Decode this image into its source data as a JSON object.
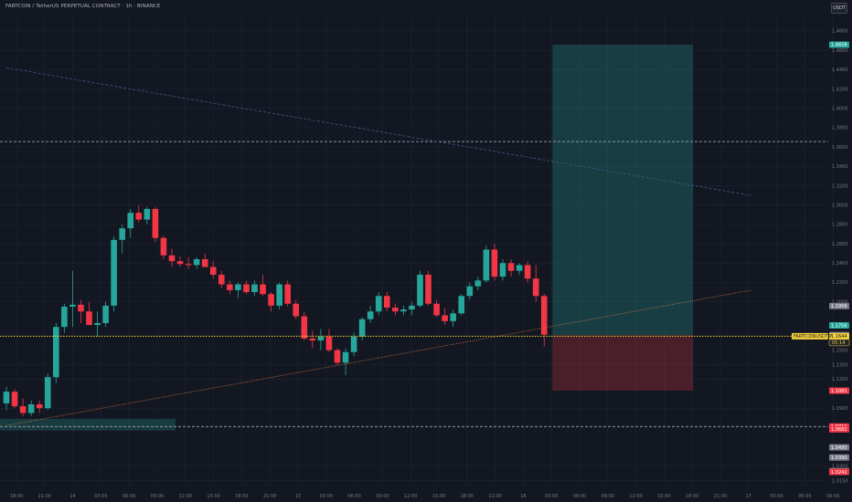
{
  "header": {
    "title": "FARTCOIN / TetherUS PERPETUAL CONTRACT · 1h · BINANCE"
  },
  "currency_button": {
    "label": "USDT"
  },
  "colors": {
    "background": "#131722",
    "up": "#26a69a",
    "down": "#f23645",
    "grid": "#1f2330",
    "profit_zone": "#26a69a",
    "loss_zone": "#f23645",
    "current_price_line": "#f5d33b"
  },
  "chart_data": {
    "type": "candlestick",
    "symbol_label": "FARTCOINUSDT.P",
    "interval": "1h",
    "y_ticks": [
      "1.4800",
      "1.4600",
      "1.4400",
      "1.4200",
      "1.4000",
      "1.3800",
      "1.3600",
      "1.3400",
      "1.3200",
      "1.3000",
      "1.2800",
      "1.2600",
      "1.2400",
      "1.2200",
      "1.2000",
      "1.1500",
      "1.1350",
      "1.1200",
      "1.0900",
      "1.0700",
      "1.0300",
      "1.0150"
    ],
    "y_tick_values": [
      1.48,
      1.46,
      1.44,
      1.42,
      1.4,
      1.38,
      1.36,
      1.34,
      1.32,
      1.3,
      1.28,
      1.26,
      1.24,
      1.22,
      1.2,
      1.15,
      1.135,
      1.12,
      1.09,
      1.07,
      1.03,
      1.015
    ],
    "x_ticks": [
      "18:00",
      "21:00",
      "14",
      "03:00",
      "06:00",
      "09:00",
      "12:00",
      "15:00",
      "18:00",
      "21:00",
      "15",
      "03:00",
      "06:00",
      "09:00",
      "12:00",
      "15:00",
      "18:00",
      "21:00",
      "16",
      "03:00",
      "06:00",
      "09:00",
      "12:00",
      "15:00",
      "18:00",
      "21:00",
      "17",
      "03:00",
      "06:00",
      "09:00"
    ],
    "ylim": [
      1.01,
      1.495
    ],
    "candles": [
      {
        "o": 1.095,
        "h": 1.112,
        "l": 1.088,
        "c": 1.107
      },
      {
        "o": 1.107,
        "h": 1.11,
        "l": 1.09,
        "c": 1.092
      },
      {
        "o": 1.092,
        "h": 1.1,
        "l": 1.082,
        "c": 1.085
      },
      {
        "o": 1.085,
        "h": 1.098,
        "l": 1.082,
        "c": 1.094
      },
      {
        "o": 1.094,
        "h": 1.098,
        "l": 1.085,
        "c": 1.09
      },
      {
        "o": 1.09,
        "h": 1.126,
        "l": 1.088,
        "c": 1.122
      },
      {
        "o": 1.122,
        "h": 1.178,
        "l": 1.116,
        "c": 1.174
      },
      {
        "o": 1.174,
        "h": 1.198,
        "l": 1.168,
        "c": 1.195
      },
      {
        "o": 1.195,
        "h": 1.232,
        "l": 1.174,
        "c": 1.197
      },
      {
        "o": 1.197,
        "h": 1.202,
        "l": 1.178,
        "c": 1.19
      },
      {
        "o": 1.19,
        "h": 1.2,
        "l": 1.176,
        "c": 1.176
      },
      {
        "o": 1.176,
        "h": 1.19,
        "l": 1.164,
        "c": 1.178
      },
      {
        "o": 1.178,
        "h": 1.2,
        "l": 1.174,
        "c": 1.196
      },
      {
        "o": 1.196,
        "h": 1.268,
        "l": 1.19,
        "c": 1.264
      },
      {
        "o": 1.264,
        "h": 1.28,
        "l": 1.25,
        "c": 1.276
      },
      {
        "o": 1.276,
        "h": 1.296,
        "l": 1.266,
        "c": 1.292
      },
      {
        "o": 1.292,
        "h": 1.3,
        "l": 1.282,
        "c": 1.285
      },
      {
        "o": 1.285,
        "h": 1.298,
        "l": 1.28,
        "c": 1.296
      },
      {
        "o": 1.296,
        "h": 1.298,
        "l": 1.262,
        "c": 1.266
      },
      {
        "o": 1.266,
        "h": 1.268,
        "l": 1.244,
        "c": 1.248
      },
      {
        "o": 1.248,
        "h": 1.255,
        "l": 1.236,
        "c": 1.242
      },
      {
        "o": 1.242,
        "h": 1.247,
        "l": 1.236,
        "c": 1.239
      },
      {
        "o": 1.239,
        "h": 1.246,
        "l": 1.234,
        "c": 1.238
      },
      {
        "o": 1.238,
        "h": 1.246,
        "l": 1.234,
        "c": 1.244
      },
      {
        "o": 1.244,
        "h": 1.25,
        "l": 1.236,
        "c": 1.236
      },
      {
        "o": 1.236,
        "h": 1.242,
        "l": 1.224,
        "c": 1.228
      },
      {
        "o": 1.228,
        "h": 1.232,
        "l": 1.214,
        "c": 1.218
      },
      {
        "o": 1.218,
        "h": 1.222,
        "l": 1.208,
        "c": 1.212
      },
      {
        "o": 1.212,
        "h": 1.22,
        "l": 1.204,
        "c": 1.218
      },
      {
        "o": 1.218,
        "h": 1.222,
        "l": 1.208,
        "c": 1.21
      },
      {
        "o": 1.21,
        "h": 1.222,
        "l": 1.206,
        "c": 1.218
      },
      {
        "o": 1.218,
        "h": 1.228,
        "l": 1.206,
        "c": 1.208
      },
      {
        "o": 1.208,
        "h": 1.21,
        "l": 1.19,
        "c": 1.196
      },
      {
        "o": 1.196,
        "h": 1.22,
        "l": 1.192,
        "c": 1.218
      },
      {
        "o": 1.218,
        "h": 1.222,
        "l": 1.195,
        "c": 1.198
      },
      {
        "o": 1.198,
        "h": 1.202,
        "l": 1.182,
        "c": 1.185
      },
      {
        "o": 1.185,
        "h": 1.19,
        "l": 1.16,
        "c": 1.162
      },
      {
        "o": 1.162,
        "h": 1.17,
        "l": 1.152,
        "c": 1.16
      },
      {
        "o": 1.16,
        "h": 1.172,
        "l": 1.15,
        "c": 1.164
      },
      {
        "o": 1.164,
        "h": 1.172,
        "l": 1.148,
        "c": 1.15
      },
      {
        "o": 1.15,
        "h": 1.152,
        "l": 1.134,
        "c": 1.137
      },
      {
        "o": 1.137,
        "h": 1.152,
        "l": 1.124,
        "c": 1.148
      },
      {
        "o": 1.148,
        "h": 1.168,
        "l": 1.144,
        "c": 1.164
      },
      {
        "o": 1.164,
        "h": 1.184,
        "l": 1.16,
        "c": 1.182
      },
      {
        "o": 1.182,
        "h": 1.196,
        "l": 1.178,
        "c": 1.19
      },
      {
        "o": 1.19,
        "h": 1.21,
        "l": 1.186,
        "c": 1.206
      },
      {
        "o": 1.206,
        "h": 1.21,
        "l": 1.19,
        "c": 1.194
      },
      {
        "o": 1.194,
        "h": 1.198,
        "l": 1.186,
        "c": 1.19
      },
      {
        "o": 1.19,
        "h": 1.196,
        "l": 1.186,
        "c": 1.192
      },
      {
        "o": 1.192,
        "h": 1.2,
        "l": 1.186,
        "c": 1.196
      },
      {
        "o": 1.196,
        "h": 1.232,
        "l": 1.194,
        "c": 1.228
      },
      {
        "o": 1.228,
        "h": 1.232,
        "l": 1.196,
        "c": 1.198
      },
      {
        "o": 1.198,
        "h": 1.202,
        "l": 1.184,
        "c": 1.186
      },
      {
        "o": 1.186,
        "h": 1.194,
        "l": 1.176,
        "c": 1.18
      },
      {
        "o": 1.18,
        "h": 1.192,
        "l": 1.174,
        "c": 1.188
      },
      {
        "o": 1.188,
        "h": 1.208,
        "l": 1.186,
        "c": 1.206
      },
      {
        "o": 1.206,
        "h": 1.22,
        "l": 1.202,
        "c": 1.216
      },
      {
        "o": 1.216,
        "h": 1.226,
        "l": 1.212,
        "c": 1.222
      },
      {
        "o": 1.222,
        "h": 1.258,
        "l": 1.22,
        "c": 1.254
      },
      {
        "o": 1.254,
        "h": 1.26,
        "l": 1.222,
        "c": 1.226
      },
      {
        "o": 1.226,
        "h": 1.244,
        "l": 1.222,
        "c": 1.24
      },
      {
        "o": 1.24,
        "h": 1.244,
        "l": 1.226,
        "c": 1.232
      },
      {
        "o": 1.232,
        "h": 1.24,
        "l": 1.228,
        "c": 1.238
      },
      {
        "o": 1.238,
        "h": 1.242,
        "l": 1.22,
        "c": 1.224
      },
      {
        "o": 1.224,
        "h": 1.238,
        "l": 1.2,
        "c": 1.206
      },
      {
        "o": 1.206,
        "h": 1.208,
        "l": 1.154,
        "c": 1.166
      }
    ],
    "price_labels": [
      {
        "value": 1.4658,
        "text": "1.4658",
        "color": "#26a69a"
      },
      {
        "value": 1.1956,
        "text": "1.1956",
        "color": "#787b86"
      },
      {
        "value": 1.1756,
        "text": "1.1756",
        "color": "#26a69a"
      },
      {
        "value": 1.1656,
        "text": "1.1656",
        "color": "#787b86"
      },
      {
        "value": 1.1644,
        "text": "1.1644",
        "color": "#f5d33b",
        "symbol": "FARTCOINUSDT.P",
        "countdown": "05:14"
      },
      {
        "value": 1.1081,
        "text": "1.1081",
        "color": "#f23645"
      },
      {
        "value": 1.0711,
        "text": "1.0711",
        "color": "#f23645"
      },
      {
        "value": 1.0682,
        "text": "1.0682",
        "color": "#f23645"
      },
      {
        "value": 1.0495,
        "text": "1.0495",
        "color": "#787b86"
      },
      {
        "value": 1.039,
        "text": "1.0390",
        "color": "#787b86"
      },
      {
        "value": 1.0249,
        "text": "1.0249",
        "color": "#787b86"
      },
      {
        "value": 1.0242,
        "text": "1.0242",
        "color": "#f23645"
      }
    ],
    "position": {
      "entry": 1.1656,
      "take_profit": 1.4658,
      "stop_loss": 1.1081,
      "start_index": 66,
      "end_index": 81
    },
    "horizontal_lines": [
      1.3656,
      1.0711
    ],
    "trendlines": [
      {
        "from": {
          "i": 0,
          "v": 1.442
        },
        "to": {
          "i": 90,
          "v": 1.31
        },
        "style": "dashed",
        "color": "#3d5a80"
      },
      {
        "from": {
          "i": 0,
          "v": 1.072
        },
        "to": {
          "i": 90,
          "v": 1.212
        },
        "style": "dotted",
        "color": "#e07b39"
      }
    ],
    "support_zone": {
      "from_index": 0,
      "to_index": 19,
      "top": 1.079,
      "bottom": 1.067
    }
  }
}
